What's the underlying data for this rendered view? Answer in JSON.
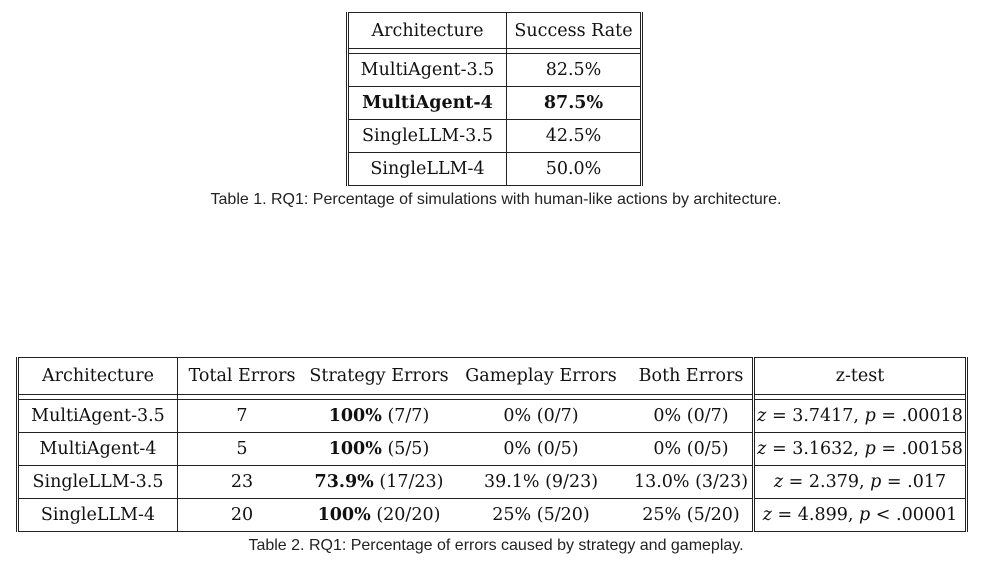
{
  "table1": {
    "headers": [
      "Architecture",
      "Success Rate"
    ],
    "rows": [
      {
        "arch": "MultiAgent-3.5",
        "rate": "82.5%",
        "bold": false
      },
      {
        "arch": "MultiAgent-4",
        "rate": "87.5%",
        "bold": true
      },
      {
        "arch": "SingleLLM-3.5",
        "rate": "42.5%",
        "bold": false
      },
      {
        "arch": "SingleLLM-4",
        "rate": "50.0%",
        "bold": false
      }
    ],
    "caption": "Table 1.  RQ1: Percentage of simulations with human-like actions by architecture."
  },
  "table2": {
    "headers": [
      "Architecture",
      "Total Errors",
      "Strategy Errors",
      "Gameplay Errors",
      "Both Errors",
      "z-test"
    ],
    "rows": [
      {
        "arch": "MultiAgent-3.5",
        "total": "7",
        "strategy_pct": "100%",
        "strategy_frac": "(7/7)",
        "gameplay": "0% (0/7)",
        "both": "0% (0/7)",
        "z": "3.7417",
        "p": ".00018",
        "p_op": "="
      },
      {
        "arch": "MultiAgent-4",
        "total": "5",
        "strategy_pct": "100%",
        "strategy_frac": "(5/5)",
        "gameplay": "0% (0/5)",
        "both": "0% (0/5)",
        "z": "3.1632",
        "p": ".00158",
        "p_op": "="
      },
      {
        "arch": "SingleLLM-3.5",
        "total": "23",
        "strategy_pct": "73.9%",
        "strategy_frac": "(17/23)",
        "gameplay": "39.1% (9/23)",
        "both": "13.0% (3/23)",
        "z": "2.379",
        "p": ".017",
        "p_op": "="
      },
      {
        "arch": "SingleLLM-4",
        "total": "20",
        "strategy_pct": "100%",
        "strategy_frac": "(20/20)",
        "gameplay": "25% (5/20)",
        "both": "25% (5/20)",
        "z": "4.899",
        "p": ".00001",
        "p_op": "<"
      }
    ],
    "caption": "Table 2.  RQ1: Percentage of errors caused by strategy and gameplay."
  }
}
